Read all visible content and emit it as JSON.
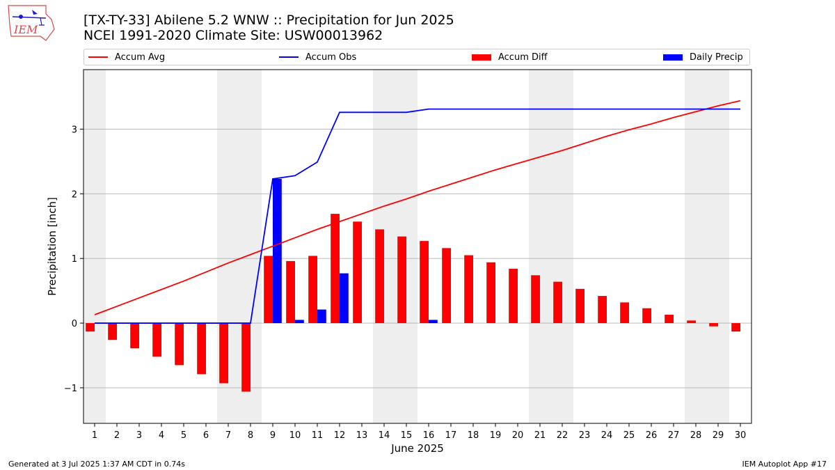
{
  "header": {
    "logo_text": "IEM",
    "title_line1": "[TX-TY-33] Abilene 5.2 WNW :: Precipitation for Jun 2025",
    "title_line2": "NCEI 1991-2020 Climate Site: USW00013962"
  },
  "legend": {
    "placement": "top",
    "items": [
      {
        "label": "Accum Avg",
        "kind": "line",
        "color": "#ff0000"
      },
      {
        "label": "Accum Obs",
        "kind": "line",
        "color": "#0000ff"
      },
      {
        "label": "Accum Diff",
        "kind": "bar",
        "color": "#ff0000"
      },
      {
        "label": "Daily Precip",
        "kind": "bar",
        "color": "#0000ff"
      }
    ]
  },
  "footer": {
    "left": "Generated at 3 Jul 2025 1:37 AM CDT in 0.74s",
    "right": "IEM Autoplot App #17"
  },
  "colors": {
    "avg": "#ff0000",
    "obs": "#0000ff",
    "diff": "#ff0000",
    "daily": "#0000ff",
    "weekend_band": "#eeeeee",
    "grid": "#b0b0b0"
  },
  "chart_data": {
    "type": "bar",
    "xlabel": "June 2025",
    "ylabel": "Precipitation [inch]",
    "xlim": [
      0.5,
      30.5
    ],
    "ylim": [
      -1.55,
      3.92
    ],
    "yticks": [
      -1,
      0,
      1,
      2,
      3
    ],
    "ytick_labels": [
      "−1",
      "0",
      "1",
      "2",
      "3"
    ],
    "grid": "y",
    "x": [
      1,
      2,
      3,
      4,
      5,
      6,
      7,
      8,
      9,
      10,
      11,
      12,
      13,
      14,
      15,
      16,
      17,
      18,
      19,
      20,
      21,
      22,
      23,
      24,
      25,
      26,
      27,
      28,
      29,
      30
    ],
    "weekend_bands": [
      [
        0.5,
        1.5
      ],
      [
        6.5,
        8.5
      ],
      [
        13.5,
        15.5
      ],
      [
        20.5,
        22.5
      ],
      [
        27.5,
        29.5
      ]
    ],
    "series": [
      {
        "name": "Accum Avg",
        "kind": "line",
        "values": [
          0.13,
          0.26,
          0.39,
          0.52,
          0.65,
          0.79,
          0.93,
          1.06,
          1.19,
          1.32,
          1.45,
          1.57,
          1.69,
          1.81,
          1.92,
          2.04,
          2.15,
          2.26,
          2.37,
          2.47,
          2.57,
          2.67,
          2.78,
          2.89,
          2.99,
          3.08,
          3.18,
          3.27,
          3.36,
          3.44
        ]
      },
      {
        "name": "Accum Obs",
        "kind": "line",
        "values": [
          0,
          0,
          0,
          0,
          0,
          0,
          0,
          0,
          2.23,
          2.28,
          2.49,
          3.26,
          3.26,
          3.26,
          3.26,
          3.31,
          3.31,
          3.31,
          3.31,
          3.31,
          3.31,
          3.31,
          3.31,
          3.31,
          3.31,
          3.31,
          3.31,
          3.31,
          3.31,
          3.31
        ]
      },
      {
        "name": "Accum Diff",
        "kind": "bar",
        "values": [
          -0.13,
          -0.26,
          -0.39,
          -0.52,
          -0.65,
          -0.79,
          -0.93,
          -1.06,
          1.04,
          0.96,
          1.04,
          1.69,
          1.57,
          1.45,
          1.34,
          1.27,
          1.16,
          1.05,
          0.94,
          0.84,
          0.74,
          0.64,
          0.53,
          0.42,
          0.32,
          0.23,
          0.13,
          0.04,
          -0.05,
          -0.13
        ]
      },
      {
        "name": "Daily Precip",
        "kind": "bar",
        "values": [
          0,
          0,
          0,
          0,
          0,
          0,
          0,
          0,
          2.23,
          0.05,
          0.21,
          0.77,
          0,
          0,
          0,
          0.05,
          0,
          0,
          0,
          0,
          0,
          0,
          0,
          0,
          0,
          0,
          0,
          0,
          0,
          0
        ]
      }
    ]
  }
}
